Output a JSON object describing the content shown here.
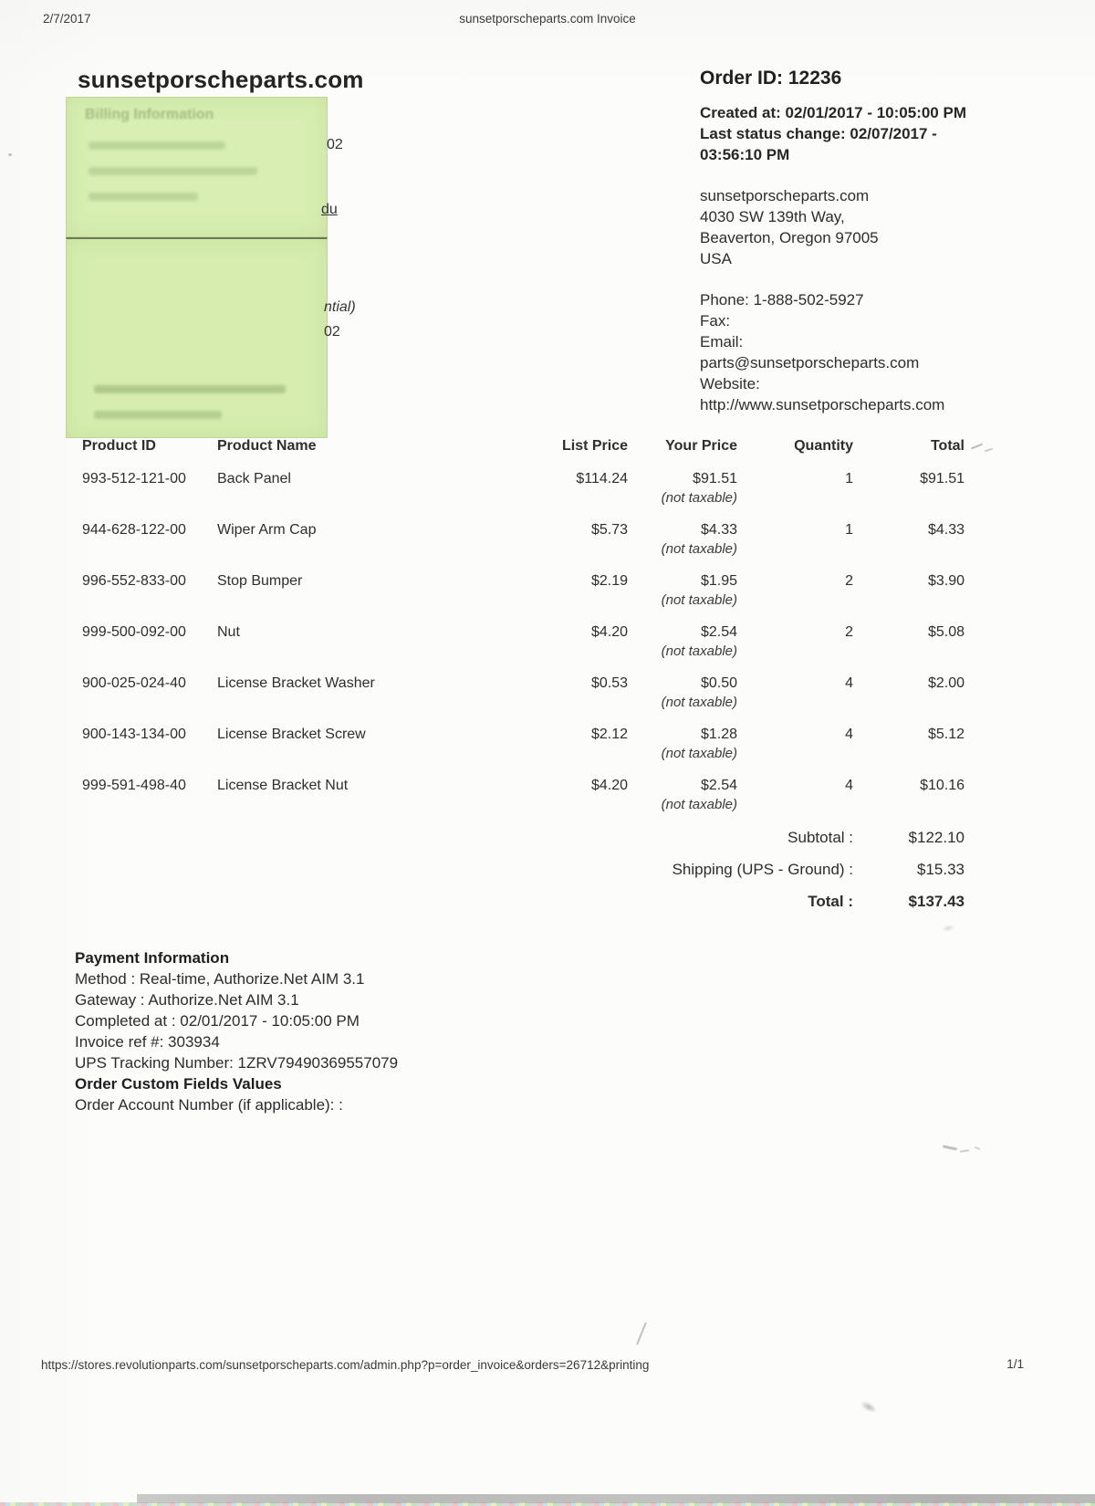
{
  "page_header": {
    "date": "2/7/2017",
    "title": "sunsetporscheparts.com Invoice"
  },
  "store": {
    "name": "sunsetporscheparts.com"
  },
  "sticky_notes": {
    "ghost_heading": "Billing Information"
  },
  "redacted_partials": {
    "billing_zip_tail": "02",
    "email_tail": "du",
    "residential_tail": "ntial)",
    "shipping_zip_tail": "02"
  },
  "order_info": {
    "order_id": "Order ID: 12236",
    "created_at": "Created at: 02/01/2017 - 10:05:00 PM",
    "last_status": "Last status change: 02/07/2017 - 03:56:10 PM",
    "merchant": {
      "name": "sunsetporscheparts.com",
      "address1": "4030 SW 139th Way,",
      "address2": "Beaverton, Oregon 97005",
      "address3": "USA",
      "phone": "Phone: 1-888-502-5927",
      "fax": "Fax:",
      "email_label": "Email:",
      "email": "parts@sunsetporscheparts.com",
      "website_label": "Website:",
      "website": "http://www.sunsetporscheparts.com"
    }
  },
  "items_table": {
    "headers": [
      "Product ID",
      "Product Name",
      "List Price",
      "Your Price",
      "Quantity",
      "Total"
    ],
    "tax_note": "(not taxable)",
    "rows": [
      {
        "product_id": "993-512-121-00",
        "product_name": "Back Panel",
        "list_price": "$114.24",
        "your_price": "$91.51",
        "quantity": "1",
        "total": "$91.51"
      },
      {
        "product_id": "944-628-122-00",
        "product_name": "Wiper Arm Cap",
        "list_price": "$5.73",
        "your_price": "$4.33",
        "quantity": "1",
        "total": "$4.33"
      },
      {
        "product_id": "996-552-833-00",
        "product_name": "Stop Bumper",
        "list_price": "$2.19",
        "your_price": "$1.95",
        "quantity": "2",
        "total": "$3.90"
      },
      {
        "product_id": "999-500-092-00",
        "product_name": "Nut",
        "list_price": "$4.20",
        "your_price": "$2.54",
        "quantity": "2",
        "total": "$5.08"
      },
      {
        "product_id": "900-025-024-40",
        "product_name": "License Bracket Washer",
        "list_price": "$0.53",
        "your_price": "$0.50",
        "quantity": "4",
        "total": "$2.00"
      },
      {
        "product_id": "900-143-134-00",
        "product_name": "License Bracket Screw",
        "list_price": "$2.12",
        "your_price": "$1.28",
        "quantity": "4",
        "total": "$5.12"
      },
      {
        "product_id": "999-591-498-40",
        "product_name": "License Bracket Nut",
        "list_price": "$4.20",
        "your_price": "$2.54",
        "quantity": "4",
        "total": "$10.16"
      }
    ],
    "summary": [
      {
        "label": "Subtotal :",
        "value": "$122.10",
        "bold": false
      },
      {
        "label": "Shipping (UPS - Ground) :",
        "value": "$15.33",
        "bold": false
      },
      {
        "label": "Total :",
        "value": "$137.43",
        "bold": true
      }
    ]
  },
  "payment": {
    "heading": "Payment Information",
    "lines": [
      "Method : Real-time, Authorize.Net AIM 3.1",
      "Gateway : Authorize.Net AIM 3.1",
      "Completed at : 02/01/2017 - 10:05:00 PM",
      "Invoice ref #: 303934",
      "UPS Tracking Number: 1ZRV79490369557079"
    ],
    "custom_fields_heading": "Order Custom Fields Values",
    "custom_fields_line": "Order Account Number (if applicable): :"
  },
  "page_footer": {
    "url": "https://stores.revolutionparts.com/sunsetporscheparts.com/admin.php?p=order_invoice&orders=26712&printing",
    "page_number": "1/1"
  },
  "colors": {
    "sticky_note": "#d8eeb2",
    "ink": "#2d2d2d",
    "scan_bar": "#a8a8a8"
  }
}
